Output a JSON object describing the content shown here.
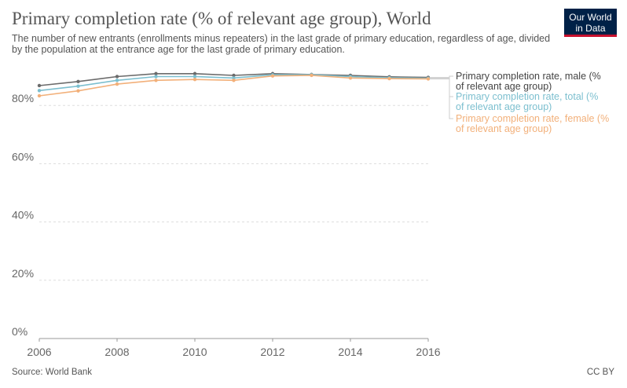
{
  "header": {
    "title": "Primary completion rate (% of relevant age group), World",
    "subtitle": "The number of new entrants (enrollments minus repeaters) in the last grade of primary education, regardless of age, divided by the population at the entrance age for the last grade of primary education.",
    "logo_line1": "Our World",
    "logo_line2": "in Data"
  },
  "footer": {
    "source": "Source: World Bank",
    "license": "CC BY"
  },
  "chart_data": {
    "type": "line",
    "title": "Primary completion rate (% of relevant age group), World",
    "x": [
      2006,
      2007,
      2008,
      2009,
      2010,
      2011,
      2012,
      2013,
      2014,
      2015,
      2016
    ],
    "xticks": [
      "2006",
      "2008",
      "2010",
      "2012",
      "2014",
      "2016"
    ],
    "xlim": [
      2006,
      2016
    ],
    "ylim": [
      0,
      100
    ],
    "yticks": [
      "0%",
      "20%",
      "40%",
      "60%",
      "80%"
    ],
    "grid": true,
    "legend_placement": "right",
    "series": [
      {
        "name": "Primary completion rate, male (% of relevant age group)",
        "color": "#6b6b6b",
        "values": [
          86.8,
          88.2,
          89.9,
          90.9,
          90.9,
          90.3,
          90.9,
          90.6,
          90.3,
          89.8,
          89.6
        ]
      },
      {
        "name": "Primary completion rate, total (% of relevant age group)",
        "color": "#7cbfcf",
        "values": [
          85.1,
          86.6,
          88.6,
          89.9,
          89.9,
          89.4,
          90.5,
          90.5,
          89.9,
          89.5,
          89.3
        ]
      },
      {
        "name": "Primary completion rate, female (% of relevant age group)",
        "color": "#f2b07a",
        "values": [
          83.3,
          85.0,
          87.3,
          88.6,
          88.9,
          88.6,
          90.1,
          90.3,
          89.4,
          89.2,
          89.1
        ]
      }
    ]
  }
}
